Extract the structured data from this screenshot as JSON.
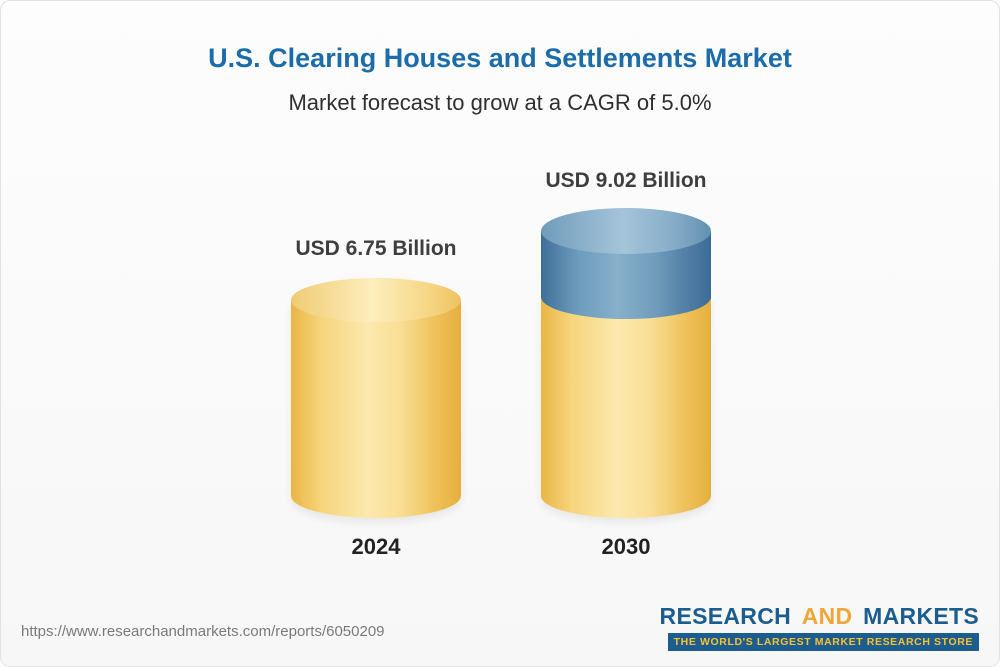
{
  "header": {
    "title": "U.S. Clearing Houses and Settlements Market",
    "subtitle": "Market forecast to grow at a CAGR of 5.0%"
  },
  "chart_data": {
    "type": "bar",
    "title": "U.S. Clearing Houses and Settlements Market",
    "subtitle": "Market forecast to grow at a CAGR of 5.0%",
    "unit": "USD Billion",
    "cagr_percent": 5.0,
    "categories": [
      "2024",
      "2030"
    ],
    "values": [
      6.75,
      9.02
    ],
    "value_labels": [
      "USD 6.75 Billion",
      "USD 9.02 Billion"
    ],
    "legend": "none",
    "grid": false,
    "layout_note": "3D cylinder bars; 2030 bar shows base value in gold with growth segment capped in blue",
    "colors": {
      "gold": "#f3cd6b",
      "blue": "#6d9cbd",
      "title_blue": "#1b6ca8"
    }
  },
  "footer": {
    "url": "https://www.researchandmarkets.com/reports/6050209",
    "logo": {
      "part1": "RESEARCH",
      "part2": "AND",
      "part3": "MARKETS",
      "tagline": "THE WORLD'S LARGEST MARKET RESEARCH STORE"
    }
  }
}
